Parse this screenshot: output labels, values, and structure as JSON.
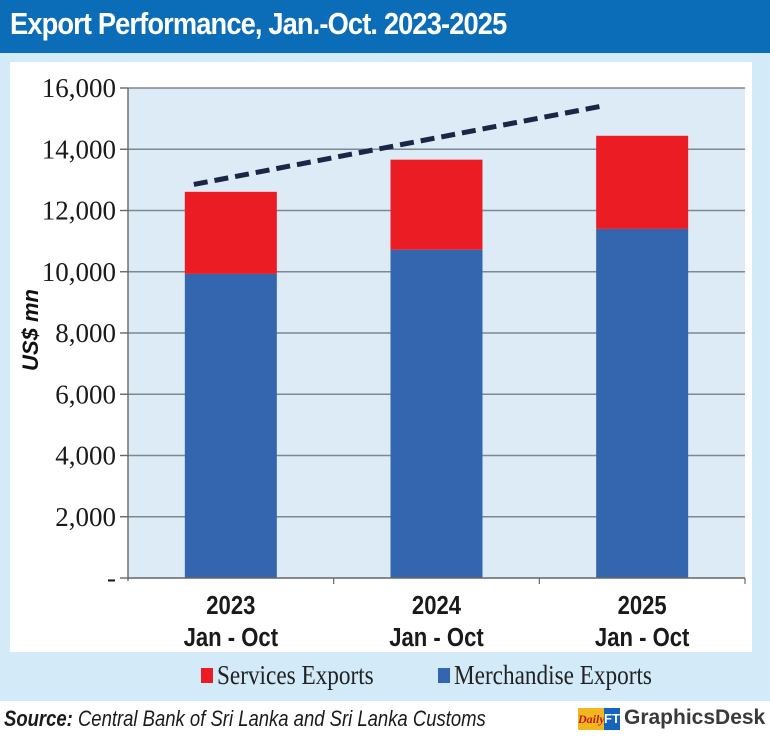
{
  "title": "Export Performance, Jan.-Oct. 2023-2025",
  "chart_data": {
    "type": "bar",
    "stacked": true,
    "title": "Export Performance, Jan.-Oct. 2023-2025",
    "xlabel": "",
    "ylabel": "US$ mn",
    "ylim": [
      0,
      16000
    ],
    "yticks": [
      0,
      2000,
      4000,
      6000,
      8000,
      10000,
      12000,
      14000,
      16000
    ],
    "ytick_labels": [
      "-",
      "2,000",
      "4,000",
      "6,000",
      "8,000",
      "10,000",
      "12,000",
      "14,000",
      "16,000"
    ],
    "grid": true,
    "categories": [
      {
        "year": "2023",
        "period": "Jan - Oct"
      },
      {
        "year": "2024",
        "period": "Jan - Oct"
      },
      {
        "year": "2025",
        "period": "Jan - Oct"
      }
    ],
    "series": [
      {
        "name": "Merchandise Exports",
        "color": "#3465af",
        "values": [
          9930,
          10720,
          11400
        ]
      },
      {
        "name": "Services Exports",
        "color": "#ec1c24",
        "values": [
          2680,
          2940,
          3040
        ]
      }
    ],
    "trendline": {
      "style": "dashed",
      "color": "#1b2545",
      "from": 12850,
      "to": 15400
    },
    "legend": {
      "placement": "bottom",
      "items": [
        {
          "name": "Services Exports",
          "color": "#ec1c24"
        },
        {
          "name": "Merchandise Exports",
          "color": "#3465af"
        }
      ]
    }
  },
  "source": {
    "label": "Source:",
    "text": "Central Bank of Sri Lanka and Sri Lanka Customs"
  },
  "logo": {
    "daily": "Daily",
    "ft": "FT",
    "text": "GraphicsDesk"
  }
}
